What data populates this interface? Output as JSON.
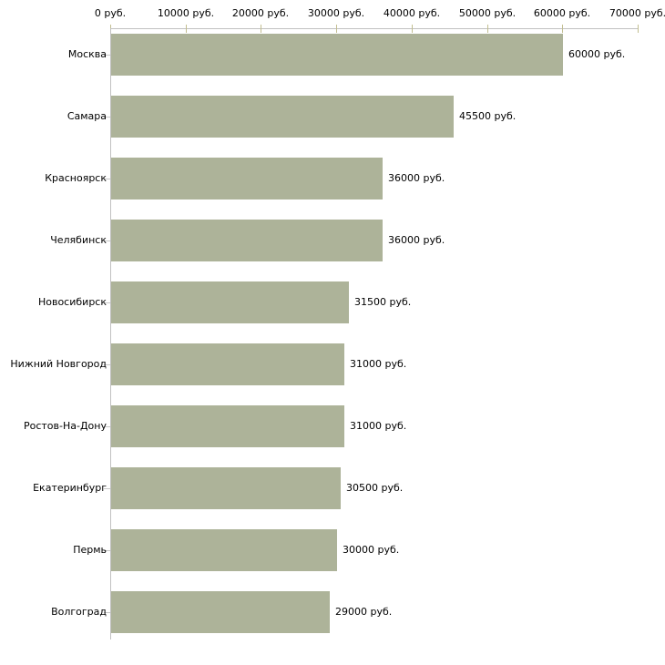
{
  "chart_data": {
    "type": "bar",
    "orientation": "horizontal",
    "title": "",
    "categories": [
      "Москва",
      "Самара",
      "Красноярск",
      "Челябинск",
      "Новосибирск",
      "Нижний Новгород",
      "Ростов-На-Дону",
      "Екатеринбург",
      "Пермь",
      "Волгоград"
    ],
    "values": [
      60000,
      45500,
      36000,
      36000,
      31500,
      31000,
      31000,
      30500,
      30000,
      29000
    ],
    "value_labels": [
      "60000 руб.",
      "45500 руб.",
      "36000 руб.",
      "36000 руб.",
      "31500 руб.",
      "31000 руб.",
      "31000 руб.",
      "30500 руб.",
      "30000 руб.",
      "29000 руб."
    ],
    "x_tick_labels": [
      "0 руб.",
      "10000 руб.",
      "20000 руб.",
      "30000 руб.",
      "40000 руб.",
      "50000 руб.",
      "60000 руб.",
      "70000 руб."
    ],
    "x_tick_values": [
      0,
      10000,
      20000,
      30000,
      40000,
      50000,
      60000,
      70000
    ],
    "xlim": [
      0,
      70000
    ],
    "unit": "руб.",
    "grid": false,
    "legend": false,
    "axis_position": "top",
    "colors": {
      "bar": "#ADB399",
      "axis_line": "#C0C0C0",
      "x_tick": "#C2BE90",
      "y_tick": "#C8C8C8",
      "text": "#000000",
      "background": "#FFFFFF"
    }
  }
}
